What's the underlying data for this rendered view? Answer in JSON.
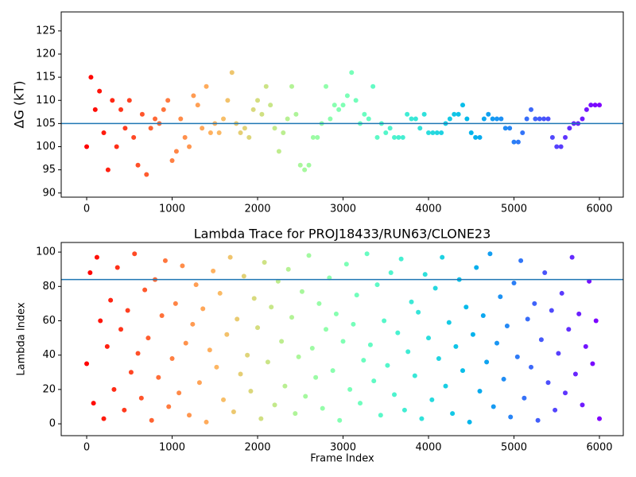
{
  "chart_data": [
    {
      "type": "scatter",
      "ylabel": "ΔG (kT)",
      "colormap": "rainbow_r",
      "hline": 105,
      "hline_color": "#1f77b4",
      "xlim": [
        -298,
        6279
      ],
      "ylim": [
        89.1,
        129.1
      ],
      "xticks": [
        0,
        1000,
        2000,
        3000,
        4000,
        5000,
        6000
      ],
      "yticks": [
        90,
        95,
        100,
        105,
        110,
        115,
        120,
        125
      ],
      "x": [
        0,
        50,
        100,
        150,
        200,
        250,
        300,
        350,
        400,
        450,
        500,
        550,
        600,
        650,
        700,
        750,
        800,
        850,
        900,
        950,
        1000,
        1050,
        1100,
        1150,
        1200,
        1250,
        1300,
        1350,
        1400,
        1450,
        1500,
        1550,
        1600,
        1650,
        1700,
        1750,
        1800,
        1850,
        1900,
        1950,
        2000,
        2050,
        2100,
        2150,
        2200,
        2250,
        2300,
        2350,
        2400,
        2450,
        2500,
        2550,
        2600,
        2650,
        2700,
        2750,
        2800,
        2850,
        2900,
        2950,
        3000,
        3050,
        3100,
        3150,
        3200,
        3250,
        3300,
        3350,
        3400,
        3450,
        3500,
        3550,
        3600,
        3650,
        3700,
        3750,
        3800,
        3850,
        3900,
        3950,
        4000,
        4050,
        4100,
        4150,
        4200,
        4250,
        4300,
        4350,
        4400,
        4450,
        4500,
        4550,
        4600,
        4650,
        4700,
        4750,
        4800,
        4850,
        4900,
        4950,
        5000,
        5050,
        5100,
        5150,
        5200,
        5250,
        5300,
        5350,
        5400,
        5450,
        5500,
        5550,
        5600,
        5650,
        5700,
        5750,
        5800,
        5850,
        5900,
        5950,
        6000
      ],
      "values": [
        100,
        115,
        108,
        112,
        103,
        95,
        110,
        100,
        108,
        104,
        110,
        102,
        96,
        107,
        94,
        104,
        106,
        105,
        108,
        110,
        97,
        99,
        106,
        102,
        100,
        111,
        109,
        104,
        113,
        103,
        105,
        103,
        106,
        110,
        116,
        105,
        103,
        104,
        102,
        108,
        110,
        107,
        113,
        109,
        104,
        99,
        103,
        106,
        113,
        107,
        96,
        95,
        96,
        102,
        102,
        105,
        113,
        106,
        109,
        108,
        109,
        111,
        116,
        110,
        105,
        107,
        106,
        113,
        102,
        105,
        103,
        104,
        102,
        102,
        102,
        107,
        106,
        106,
        104,
        107,
        103,
        103,
        103,
        103,
        105,
        106,
        107,
        107,
        109,
        106,
        103,
        102,
        102,
        106,
        107,
        106,
        106,
        106,
        104,
        104,
        101,
        101,
        103,
        106,
        108,
        106,
        106,
        106,
        106,
        102,
        100,
        100,
        102,
        104,
        105,
        105,
        106,
        108,
        109,
        109,
        109
      ]
    },
    {
      "type": "scatter",
      "title": "Lambda Trace for PROJ18433/RUN63/CLONE23",
      "xlabel": "Frame Index",
      "ylabel": "Lambda Index",
      "colormap": "rainbow_r",
      "hline": 84,
      "hline_color": "#1f77b4",
      "xlim": [
        -298,
        6279
      ],
      "ylim": [
        -6.9,
        105.6
      ],
      "xticks": [
        0,
        1000,
        2000,
        3000,
        4000,
        5000,
        6000
      ],
      "yticks": [
        0,
        20,
        40,
        60,
        80,
        100
      ],
      "x": [
        0,
        40,
        80,
        120,
        160,
        200,
        240,
        280,
        320,
        360,
        400,
        440,
        480,
        520,
        560,
        600,
        640,
        680,
        720,
        760,
        800,
        840,
        880,
        920,
        960,
        1000,
        1040,
        1080,
        1120,
        1160,
        1200,
        1240,
        1280,
        1320,
        1360,
        1400,
        1440,
        1480,
        1520,
        1560,
        1600,
        1640,
        1680,
        1720,
        1760,
        1800,
        1840,
        1880,
        1920,
        1960,
        2000,
        2040,
        2080,
        2120,
        2160,
        2200,
        2240,
        2280,
        2320,
        2360,
        2400,
        2440,
        2480,
        2520,
        2560,
        2600,
        2640,
        2680,
        2720,
        2760,
        2800,
        2840,
        2880,
        2920,
        2960,
        3000,
        3040,
        3080,
        3120,
        3160,
        3200,
        3240,
        3280,
        3320,
        3360,
        3400,
        3440,
        3480,
        3520,
        3560,
        3600,
        3640,
        3680,
        3720,
        3760,
        3800,
        3840,
        3880,
        3920,
        3960,
        4000,
        4040,
        4080,
        4120,
        4160,
        4200,
        4240,
        4280,
        4320,
        4360,
        4400,
        4440,
        4480,
        4520,
        4560,
        4600,
        4640,
        4680,
        4720,
        4760,
        4800,
        4840,
        4880,
        4920,
        4960,
        5000,
        5040,
        5080,
        5120,
        5160,
        5200,
        5240,
        5280,
        5320,
        5360,
        5400,
        5440,
        5480,
        5520,
        5560,
        5600,
        5640,
        5680,
        5720,
        5760,
        5800,
        5840,
        5880,
        5920,
        5960,
        6000
      ],
      "values": [
        35,
        88,
        12,
        97,
        60,
        3,
        45,
        72,
        20,
        91,
        55,
        8,
        66,
        30,
        99,
        41,
        15,
        78,
        50,
        2,
        84,
        27,
        63,
        95,
        10,
        38,
        70,
        18,
        92,
        47,
        5,
        58,
        81,
        24,
        67,
        1,
        43,
        89,
        33,
        76,
        14,
        52,
        97,
        7,
        61,
        29,
        86,
        40,
        19,
        73,
        56,
        3,
        94,
        36,
        68,
        11,
        83,
        48,
        22,
        90,
        62,
        6,
        39,
        77,
        16,
        98,
        44,
        27,
        70,
        9,
        55,
        85,
        31,
        64,
        2,
        48,
        93,
        20,
        58,
        75,
        12,
        37,
        99,
        46,
        25,
        81,
        5,
        60,
        34,
        88,
        17,
        53,
        96,
        8,
        42,
        71,
        28,
        65,
        3,
        87,
        50,
        14,
        79,
        38,
        97,
        22,
        59,
        6,
        45,
        84,
        31,
        68,
        1,
        52,
        91,
        19,
        63,
        36,
        99,
        10,
        47,
        74,
        26,
        57,
        4,
        82,
        39,
        95,
        15,
        61,
        33,
        70,
        2,
        49,
        88,
        24,
        66,
        8,
        41,
        76,
        18,
        55,
        97,
        29,
        64,
        11,
        45,
        83,
        35,
        60,
        3
      ]
    }
  ]
}
